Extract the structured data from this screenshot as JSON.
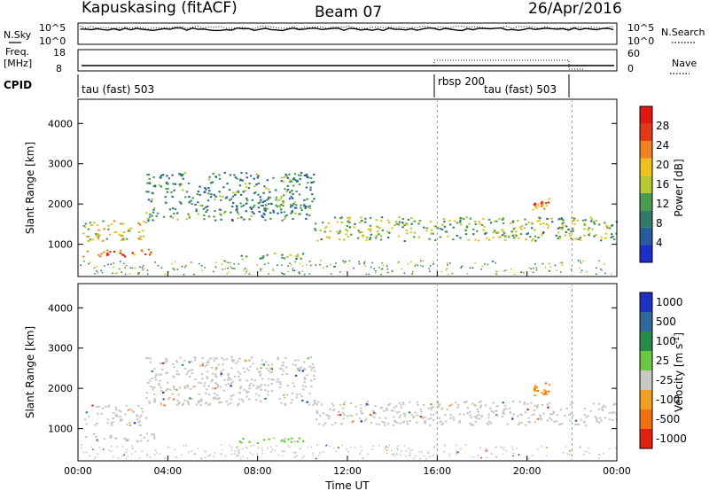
{
  "header": {
    "station": "Kapuskasing (fitACF)",
    "beam": "Beam 07",
    "date": "26/Apr/2016"
  },
  "top_panel": {
    "left_label": "N.Sky",
    "right_label": "N.Search",
    "left_ticks": [
      "10^5",
      "10^0"
    ],
    "right_ticks": [
      "10^5",
      "10^0"
    ]
  },
  "freq_panel": {
    "left_label_1": "Freq.",
    "left_label_2": "[MHz]",
    "right_label": "Nave",
    "left_ticks": [
      "18",
      "8"
    ],
    "right_ticks": [
      "60",
      "0"
    ]
  },
  "cpid_panel": {
    "label": "CPID",
    "segments": [
      "tau (fast) 503",
      "rbsp 200",
      "tau (fast) 503"
    ]
  },
  "chart_data": [
    {
      "type": "heatmap",
      "name": "power",
      "ylabel": "Slant Range [km]",
      "xlabel": "Time UT",
      "x_ticks": [
        "00:00",
        "04:00",
        "08:00",
        "12:00",
        "16:00",
        "20:00",
        "00:00"
      ],
      "x_range_hours": [
        0,
        24
      ],
      "ylim": [
        200,
        4600
      ],
      "y_ticks": [
        1000,
        2000,
        3000,
        4000
      ],
      "colorbar": {
        "label": "Power [dB]",
        "ticks": [
          4,
          8,
          12,
          16,
          20,
          24,
          28
        ],
        "range": [
          0,
          32
        ],
        "colors": [
          "#1e2fc8",
          "#2a5aa0",
          "#307a68",
          "#4a9a50",
          "#b8c830",
          "#f0c020",
          "#f08020",
          "#e03a18",
          "#e01a10"
        ]
      },
      "echo_regions": [
        {
          "t": [
            0.2,
            3.4
          ],
          "range_km": [
            700,
            900
          ],
          "power_db": 24
        },
        {
          "t": [
            0.2,
            3.0
          ],
          "range_km": [
            1100,
            1600
          ],
          "power_db": 18
        },
        {
          "t": [
            3.0,
            10.5
          ],
          "range_km": [
            1600,
            2800
          ],
          "power_db": 10
        },
        {
          "t": [
            10.5,
            24.0
          ],
          "range_km": [
            1100,
            1700
          ],
          "power_db": 14
        },
        {
          "t": [
            7.0,
            10.0
          ],
          "range_km": [
            650,
            800
          ],
          "power_db": 12
        },
        {
          "t": [
            20.2,
            21.0
          ],
          "range_km": [
            1850,
            2150
          ],
          "power_db": 24
        }
      ]
    },
    {
      "type": "heatmap",
      "name": "velocity",
      "ylabel": "Slant Range [km]",
      "xlabel": "Time UT",
      "x_ticks": [
        "00:00",
        "04:00",
        "08:00",
        "12:00",
        "16:00",
        "20:00",
        "00:00"
      ],
      "x_range_hours": [
        0,
        24
      ],
      "ylim": [
        200,
        4600
      ],
      "y_ticks": [
        1000,
        2000,
        3000,
        4000
      ],
      "colorbar": {
        "label": "Velocity",
        "ticks": [
          "1000",
          "500",
          "100",
          "25",
          "-25",
          "-100",
          "-500",
          "-1000"
        ],
        "colors": [
          "#2030c0",
          "#306a9a",
          "#2a8a48",
          "#6ac840",
          "#c8c8c0",
          "#f0a020",
          "#f07010",
          "#e02010"
        ]
      },
      "echo_regions": [
        {
          "t": [
            0.2,
            3.4
          ],
          "range_km": [
            700,
            900
          ],
          "velocity": 0
        },
        {
          "t": [
            0.2,
            3.0
          ],
          "range_km": [
            1100,
            1600
          ],
          "velocity": 0
        },
        {
          "t": [
            3.0,
            10.5
          ],
          "range_km": [
            1600,
            2800
          ],
          "velocity": 0
        },
        {
          "t": [
            10.5,
            24.0
          ],
          "range_km": [
            1100,
            1700
          ],
          "velocity": 0
        },
        {
          "t": [
            7.0,
            10.0
          ],
          "range_km": [
            650,
            800
          ],
          "velocity": 200
        },
        {
          "t": [
            20.2,
            21.0
          ],
          "range_km": [
            1850,
            2150
          ],
          "velocity": -300
        }
      ]
    }
  ]
}
